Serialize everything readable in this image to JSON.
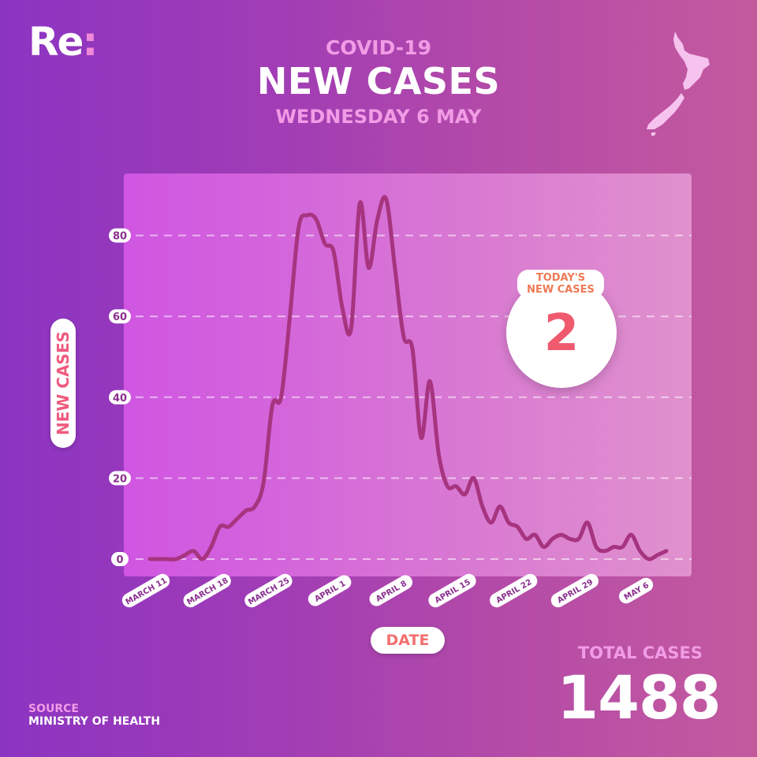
{
  "brand": {
    "logo_main": "Re",
    "logo_colon": ":"
  },
  "header": {
    "subtitle": "COVID-19",
    "title": "NEW CASES",
    "date": "WEDNESDAY 6 MAY"
  },
  "map_icon": "new-zealand-map-icon",
  "axes": {
    "ylabel": "NEW CASES",
    "xlabel": "DATE"
  },
  "today": {
    "label_line1": "TODAY'S",
    "label_line2": "NEW CASES",
    "value": "2"
  },
  "total": {
    "label": "TOTAL CASES",
    "value": "1488"
  },
  "source": {
    "label": "SOURCE",
    "value": "MINISTRY OF HEALTH"
  },
  "colors": {
    "line": "#a6347f",
    "accent": "#f29be6",
    "pill_text": "#ef5a7e"
  },
  "chart_data": {
    "type": "line",
    "title": "NEW CASES",
    "xlabel": "DATE",
    "ylabel": "NEW CASES",
    "ylim": [
      0,
      90
    ],
    "yticks": [
      0,
      20,
      40,
      60,
      80
    ],
    "grid": true,
    "xtick_labels": [
      "MARCH 11",
      "MARCH 18",
      "MARCH 25",
      "APRIL 1",
      "APRIL 8",
      "APRIL 15",
      "APRIL 22",
      "APRIL 29",
      "MAY 6"
    ],
    "xtick_index": [
      0,
      7,
      14,
      21,
      28,
      35,
      42,
      49,
      56
    ],
    "series": [
      {
        "values": [
          0,
          0,
          0,
          0,
          1,
          2,
          0,
          3,
          8,
          8,
          10,
          12,
          13,
          19,
          38,
          40,
          60,
          82,
          85,
          84,
          78,
          76,
          62,
          57,
          88,
          72,
          84,
          89,
          72,
          55,
          52,
          30,
          44,
          26,
          18,
          18,
          16,
          20,
          13,
          9,
          13,
          9,
          8,
          5,
          6,
          3,
          5,
          6,
          5,
          5,
          9,
          3,
          2,
          3,
          3,
          6,
          2,
          0,
          1,
          2
        ]
      }
    ]
  }
}
